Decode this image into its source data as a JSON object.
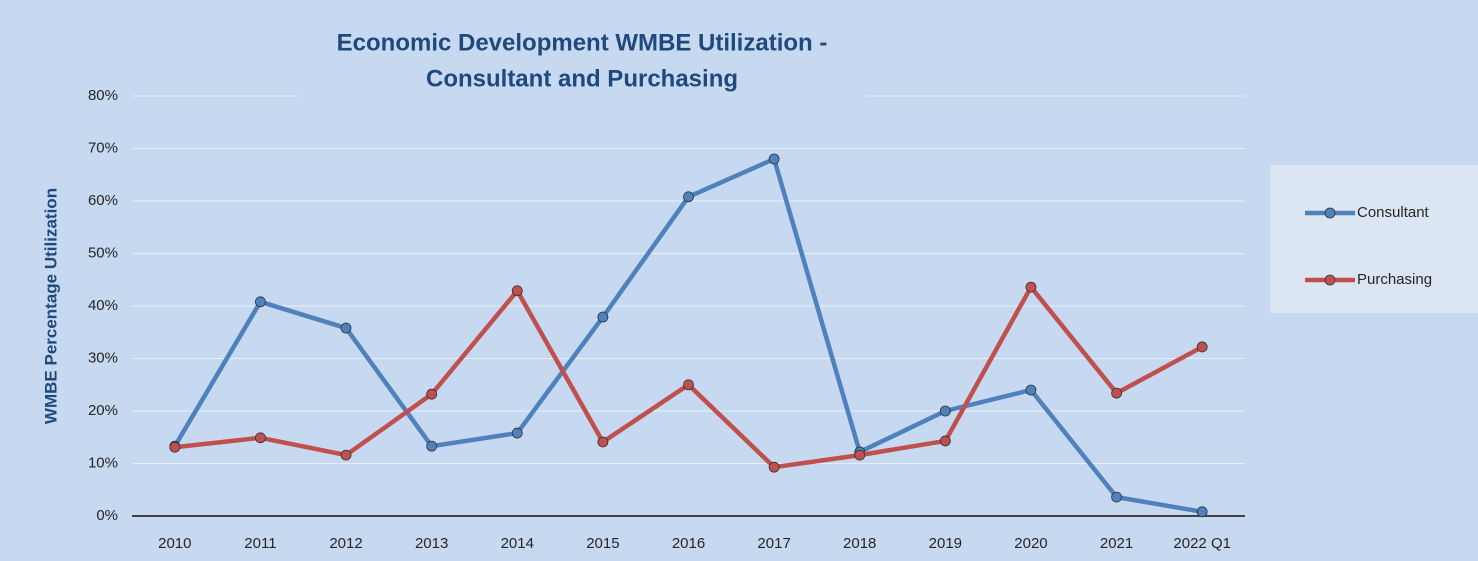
{
  "chart_data": {
    "type": "line",
    "title": [
      "Economic Development WMBE Utilization -",
      "Consultant and Purchasing"
    ],
    "y_label": "WMBE Percentage Utilization",
    "categories": [
      "2010",
      "2011",
      "2012",
      "2013",
      "2014",
      "2015",
      "2016",
      "2017",
      "2018",
      "2019",
      "2020",
      "2021",
      "2022 Q1"
    ],
    "series": [
      {
        "name": "Consultant",
        "color": "#4f81bd",
        "values": [
          13.3,
          40.8,
          35.8,
          13.3,
          15.8,
          37.9,
          60.8,
          68,
          12.2,
          20,
          24,
          3.6,
          0.8
        ]
      },
      {
        "name": "Purchasing",
        "color": "#c0504d",
        "values": [
          13.1,
          14.9,
          11.6,
          23.2,
          42.9,
          14.1,
          25,
          9.3,
          11.6,
          14.3,
          43.6,
          23.4,
          32.2
        ]
      }
    ],
    "ylim": [
      0,
      80
    ],
    "yticks": [
      {
        "value": 0,
        "label": "0%"
      },
      {
        "value": 10,
        "label": "10%"
      },
      {
        "value": 20,
        "label": "20%"
      },
      {
        "value": 30,
        "label": "30%"
      },
      {
        "value": 40,
        "label": "40%"
      },
      {
        "value": 50,
        "label": "50%"
      },
      {
        "value": 60,
        "label": "60%"
      },
      {
        "value": 70,
        "label": "70%"
      },
      {
        "value": 80,
        "label": "80%"
      }
    ],
    "grid": true,
    "legend": "right"
  }
}
